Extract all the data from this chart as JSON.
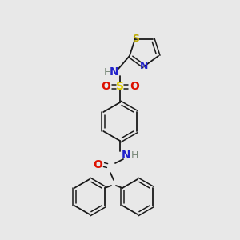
{
  "background_color": "#e8e8e8",
  "bond_color": "#1a1a1a",
  "colors": {
    "N": "#2222cc",
    "O": "#dd1100",
    "S_sulfone": "#ddcc00",
    "S_thiazole": "#bbaa00",
    "H": "#778877",
    "C": "#1a1a1a"
  },
  "figsize": [
    3.0,
    3.0
  ],
  "dpi": 100
}
